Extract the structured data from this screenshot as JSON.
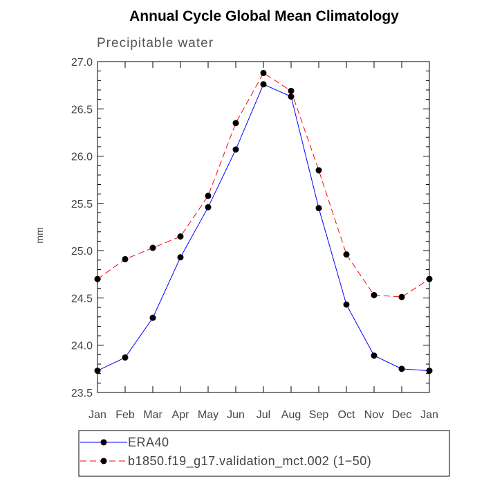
{
  "chart_data": {
    "type": "line",
    "title": "Annual Cycle Global Mean Climatology",
    "subtitle": "Precipitable water",
    "xlabel": "",
    "ylabel": "mm",
    "categories": [
      "Jan",
      "Feb",
      "Mar",
      "Apr",
      "May",
      "Jun",
      "Jul",
      "Aug",
      "Sep",
      "Oct",
      "Nov",
      "Dec",
      "Jan"
    ],
    "ylim": [
      23.5,
      27.0
    ],
    "yticks": [
      "23.5",
      "24.0",
      "24.5",
      "25.0",
      "25.5",
      "26.0",
      "26.5",
      "27.0"
    ],
    "grid": false,
    "legend_position": "bottom",
    "series": [
      {
        "name": "ERA40",
        "color": "#0000ff",
        "style": "solid",
        "marker_color": "#000000",
        "values": [
          23.73,
          23.87,
          24.29,
          24.93,
          25.46,
          26.07,
          26.76,
          26.63,
          25.45,
          24.43,
          23.89,
          23.75,
          23.73
        ]
      },
      {
        "name": "b1850.f19_g17.validation_mct.002 (1−50)",
        "color": "#ff0000",
        "style": "dashed",
        "marker_color": "#000000",
        "values": [
          24.7,
          24.91,
          25.03,
          25.15,
          25.58,
          26.35,
          26.88,
          26.69,
          25.85,
          24.96,
          24.53,
          24.51,
          24.7
        ]
      }
    ]
  }
}
